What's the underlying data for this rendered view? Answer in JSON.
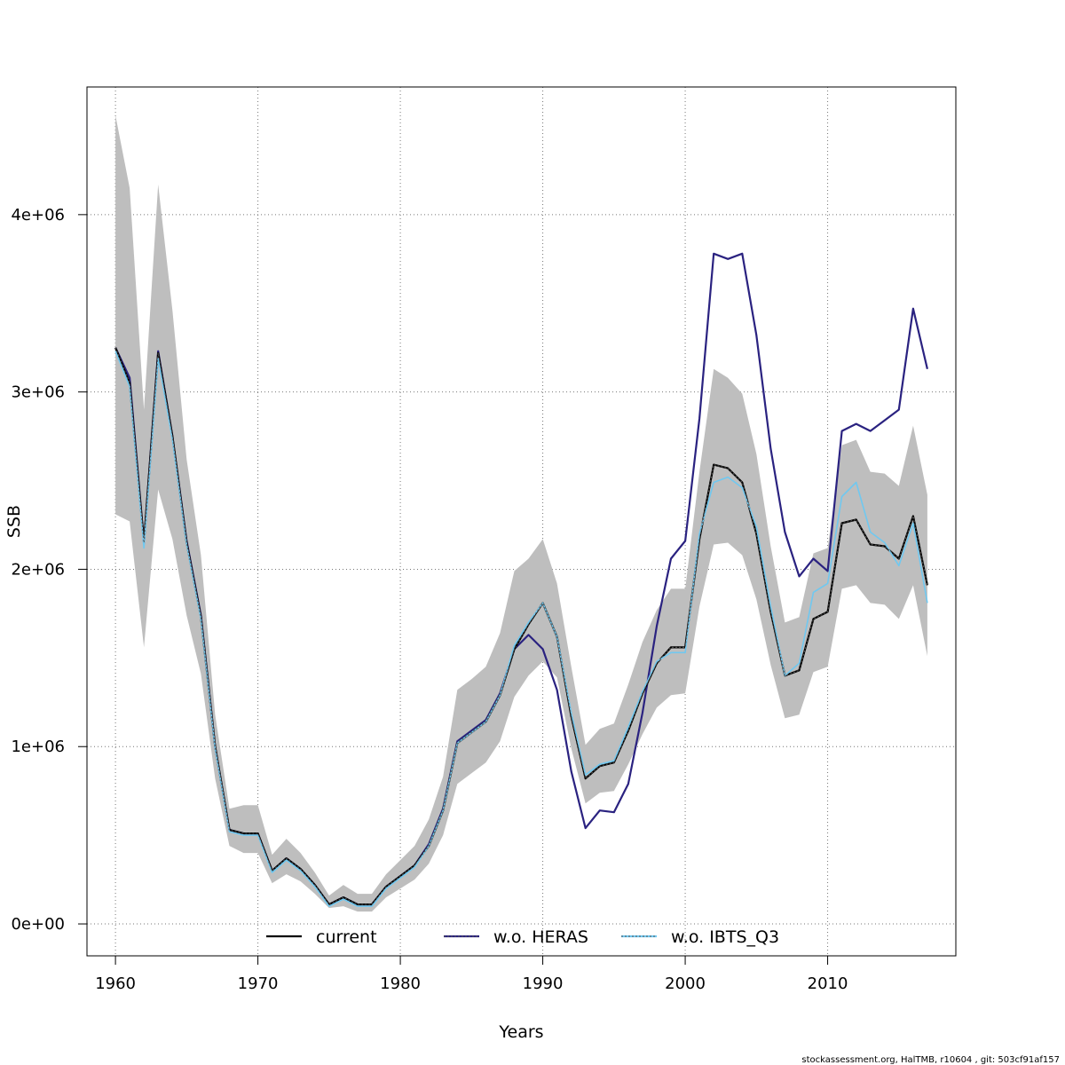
{
  "chart_data": {
    "type": "line",
    "title": "",
    "xlabel": "Years",
    "ylabel": "SSB",
    "xlim": [
      1958,
      2019
    ],
    "ylim": [
      -180000,
      4720000
    ],
    "grid": true,
    "x_ticks": [
      1960,
      1970,
      1980,
      1990,
      2000,
      2010
    ],
    "x_tick_labels": [
      "1960",
      "1970",
      "1980",
      "1990",
      "2000",
      "2010"
    ],
    "y_ticks": [
      0,
      1000000,
      2000000,
      3000000,
      4000000
    ],
    "y_tick_labels": [
      "0e+00",
      "1e+06",
      "2e+06",
      "3e+06",
      "4e+06"
    ],
    "x": [
      1960,
      1961,
      1962,
      1963,
      1964,
      1965,
      1966,
      1967,
      1968,
      1969,
      1970,
      1971,
      1972,
      1973,
      1974,
      1975,
      1976,
      1977,
      1978,
      1979,
      1980,
      1981,
      1982,
      1983,
      1984,
      1985,
      1986,
      1987,
      1988,
      1989,
      1990,
      1991,
      1992,
      1993,
      1994,
      1995,
      1996,
      1997,
      1998,
      1999,
      2000,
      2001,
      2002,
      2003,
      2004,
      2005,
      2006,
      2007,
      2008,
      2009,
      2010,
      2011,
      2012,
      2013,
      2014,
      2015,
      2016,
      2017
    ],
    "confidence_band": {
      "name": "current",
      "color": "#bebebe",
      "upper": [
        4560000,
        4150000,
        2900000,
        4170000,
        3460000,
        2620000,
        2080000,
        1180000,
        650000,
        670000,
        670000,
        390000,
        480000,
        400000,
        290000,
        160000,
        220000,
        170000,
        170000,
        280000,
        360000,
        440000,
        590000,
        830000,
        1320000,
        1380000,
        1450000,
        1640000,
        1990000,
        2060000,
        2170000,
        1920000,
        1450000,
        1010000,
        1100000,
        1130000,
        1350000,
        1590000,
        1770000,
        1890000,
        1890000,
        2550000,
        3130000,
        3080000,
        2990000,
        2650000,
        2130000,
        1700000,
        1730000,
        2090000,
        2120000,
        2700000,
        2730000,
        2550000,
        2540000,
        2470000,
        2810000,
        2420000
      ],
      "lower": [
        2310000,
        2270000,
        1560000,
        2450000,
        2170000,
        1740000,
        1410000,
        820000,
        440000,
        400000,
        400000,
        230000,
        280000,
        240000,
        170000,
        90000,
        100000,
        70000,
        70000,
        150000,
        200000,
        250000,
        340000,
        500000,
        790000,
        850000,
        910000,
        1030000,
        1280000,
        1400000,
        1480000,
        1390000,
        990000,
        680000,
        740000,
        750000,
        900000,
        1070000,
        1220000,
        1290000,
        1300000,
        1790000,
        2140000,
        2150000,
        2080000,
        1830000,
        1460000,
        1160000,
        1180000,
        1420000,
        1450000,
        1890000,
        1910000,
        1810000,
        1800000,
        1720000,
        1910000,
        1510000
      ]
    },
    "series": [
      {
        "name": "current",
        "color": "#000000",
        "values": [
          3250000,
          3050000,
          2150000,
          3220000,
          2750000,
          2150000,
          1730000,
          1000000,
          530000,
          510000,
          510000,
          300000,
          370000,
          310000,
          220000,
          110000,
          150000,
          110000,
          110000,
          210000,
          270000,
          330000,
          440000,
          640000,
          1020000,
          1080000,
          1140000,
          1290000,
          1550000,
          1690000,
          1810000,
          1620000,
          1170000,
          820000,
          890000,
          910000,
          1090000,
          1300000,
          1470000,
          1560000,
          1560000,
          2170000,
          2590000,
          2570000,
          2490000,
          2200000,
          1760000,
          1400000,
          1430000,
          1720000,
          1760000,
          2260000,
          2280000,
          2140000,
          2130000,
          2060000,
          2300000,
          1910000
        ],
        "style": "solid"
      },
      {
        "name": "w.o. HERAS",
        "color": "#2a2280",
        "values": [
          3250000,
          3080000,
          2150000,
          3230000,
          2750000,
          2160000,
          1740000,
          1000000,
          530000,
          510000,
          510000,
          300000,
          370000,
          310000,
          220000,
          110000,
          150000,
          110000,
          110000,
          210000,
          270000,
          330000,
          450000,
          650000,
          1030000,
          1090000,
          1150000,
          1300000,
          1550000,
          1630000,
          1550000,
          1320000,
          860000,
          540000,
          640000,
          630000,
          790000,
          1190000,
          1680000,
          2060000,
          2160000,
          2850000,
          3780000,
          3750000,
          3780000,
          3320000,
          2680000,
          2210000,
          1960000,
          2060000,
          1990000,
          2780000,
          2820000,
          2780000,
          2840000,
          2900000,
          3470000,
          3130000
        ],
        "style": "solid"
      },
      {
        "name": "w.o. IBTS_Q3",
        "color": "#70c8f0",
        "values": [
          3230000,
          3030000,
          2120000,
          3190000,
          2730000,
          2140000,
          1720000,
          990000,
          520000,
          500000,
          500000,
          290000,
          360000,
          300000,
          210000,
          100000,
          140000,
          100000,
          100000,
          200000,
          260000,
          320000,
          440000,
          640000,
          1020000,
          1080000,
          1140000,
          1290000,
          1570000,
          1700000,
          1810000,
          1620000,
          1190000,
          840000,
          900000,
          920000,
          1110000,
          1310000,
          1480000,
          1530000,
          1530000,
          2200000,
          2490000,
          2520000,
          2460000,
          2240000,
          1790000,
          1400000,
          1470000,
          1870000,
          1920000,
          2410000,
          2490000,
          2210000,
          2150000,
          2020000,
          2260000,
          1810000
        ],
        "style": "solid"
      }
    ],
    "legend": {
      "placement": "bottom-center",
      "entries": [
        "current",
        "w.o. HERAS",
        "w.o. IBTS_Q3"
      ]
    }
  },
  "footer": "stockassessment.org, HalTMB, r10604 , git: 503cf91af157"
}
